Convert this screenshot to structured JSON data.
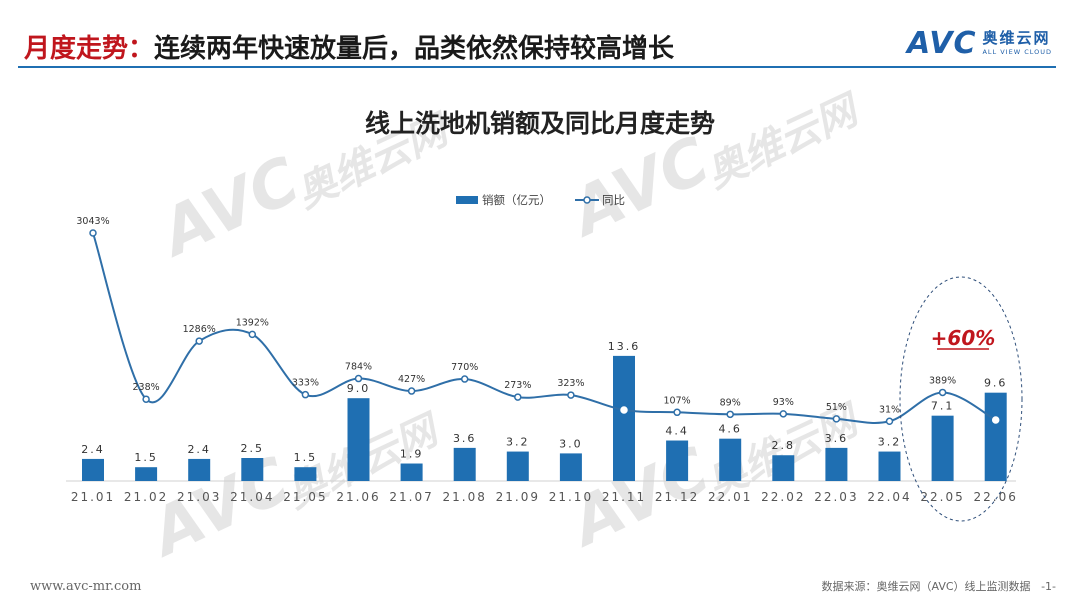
{
  "header": {
    "title_lead": "月度走势：",
    "title_rest": "连续两年快速放量后，品类依然保持较高增长"
  },
  "logo": {
    "mark": "AVC",
    "cn": "奥维云网",
    "en": "ALL VIEW CLOUD"
  },
  "watermark": {
    "mark": "AVC",
    "cn": "奥维云网",
    "en": "ALL VIEW CLOUD"
  },
  "footer": {
    "website": "www.avc-mr.com",
    "source": "数据来源：奥维云网（AVC）线上监测数据",
    "page": "-1-"
  },
  "annotation": {
    "text": "+60%",
    "color": "#c0161d"
  },
  "colors": {
    "bar": "#1f6fb2",
    "line": "#2f6fa8",
    "accent": "#c0161d",
    "title_rule": "#1f6fb2"
  },
  "chart_data": {
    "type": "bar+line",
    "title": "线上洗地机销额及同比月度走势",
    "legend_position": "top-center",
    "grid": false,
    "categories": [
      "21.01",
      "21.02",
      "21.03",
      "21.04",
      "21.05",
      "21.06",
      "21.07",
      "21.08",
      "21.09",
      "21.10",
      "21.11",
      "21.12",
      "22.01",
      "22.02",
      "22.03",
      "22.04",
      "22.05",
      "22.06"
    ],
    "series": [
      {
        "name": "销额（亿元）",
        "type": "bar",
        "values": [
          2.4,
          1.5,
          2.4,
          2.5,
          1.5,
          9.0,
          1.9,
          3.6,
          3.2,
          3.0,
          13.6,
          4.4,
          4.6,
          2.8,
          3.6,
          3.2,
          7.1,
          9.6
        ],
        "labels": [
          "2.4",
          "1.5",
          "2.4",
          "2.5",
          "1.5",
          "9.0",
          "1.9",
          "3.6",
          "3.2",
          "3.0",
          "13.6",
          "4.4",
          "4.6",
          "2.8",
          "3.6",
          "3.2",
          "7.1",
          "9.6"
        ]
      },
      {
        "name": "同比",
        "type": "line",
        "values": [
          3043,
          238,
          1286,
          1392,
          333,
          784,
          427,
          770,
          273,
          323,
          null,
          107,
          89,
          93,
          51,
          31,
          389,
          null
        ],
        "labels": [
          "3043%",
          "238%",
          "1286%",
          "1392%",
          "333%",
          "784%",
          "427%",
          "770%",
          "273%",
          "323%",
          "",
          "107%",
          "89%",
          "93%",
          "51%",
          "31%",
          "389%",
          ""
        ]
      }
    ]
  }
}
